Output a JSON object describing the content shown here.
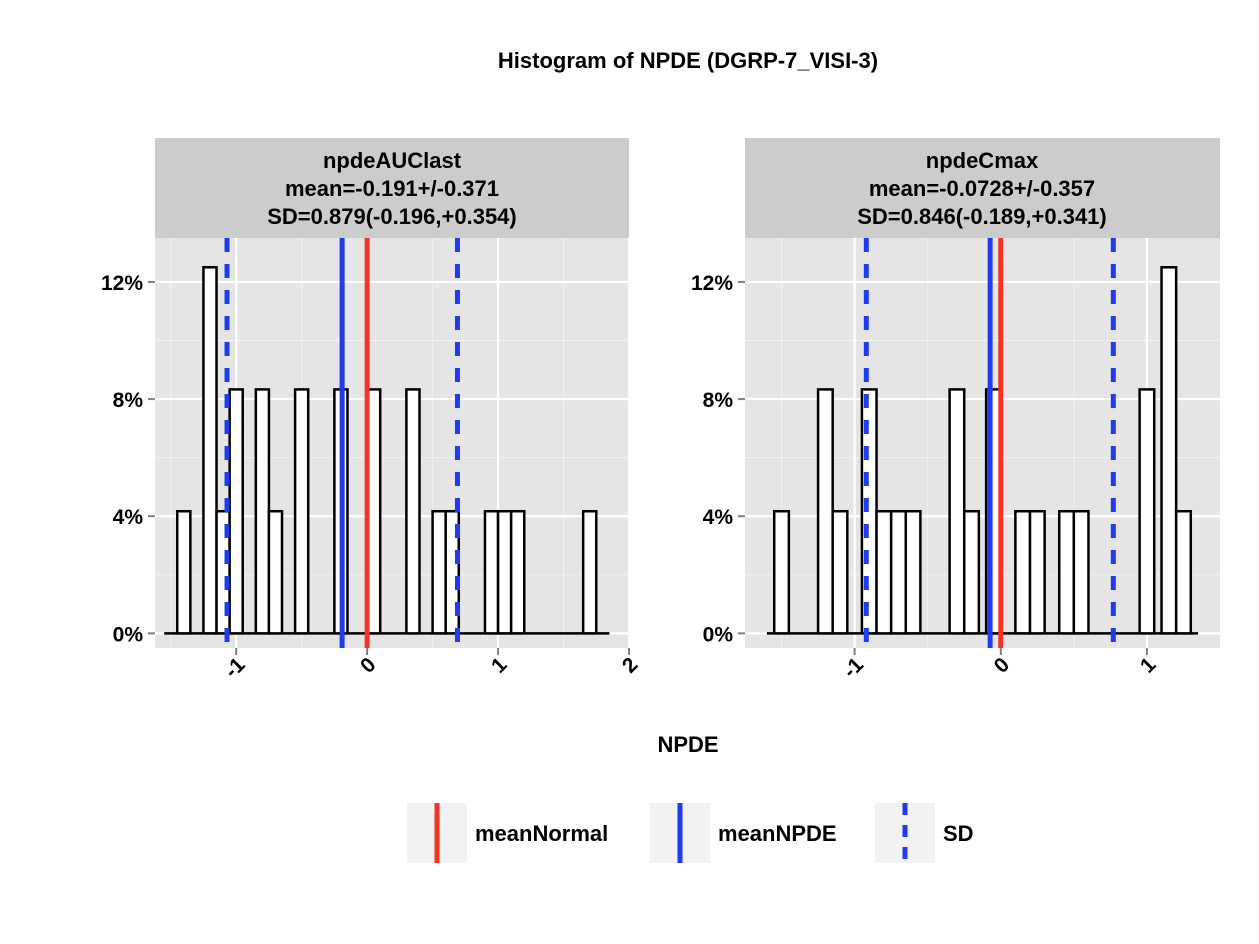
{
  "chart_data": {
    "type": "bar",
    "title": "Histogram of NPDE (DGRP-7_VISI-3)",
    "xlabel": "NPDE",
    "ylabel": "",
    "grid": true,
    "legend_placement": "bottom",
    "legend": [
      {
        "name": "meanNormal",
        "color": "#f23325",
        "linestyle": "solid"
      },
      {
        "name": "meanNPDE",
        "color": "#1f3cf0",
        "linestyle": "solid"
      },
      {
        "name": "SD",
        "color": "#1f3cf0",
        "linestyle": "dashed"
      }
    ],
    "panels": [
      {
        "strip": [
          "npdeAUClast",
          "mean=-0.191+/-0.371",
          "SD=0.879(-0.196,+0.354)"
        ],
        "xlim": [
          -1.62,
          2.0
        ],
        "ylim": [
          -0.005,
          0.135
        ],
        "xticks": [
          -1,
          0,
          1,
          2
        ],
        "xtick_labels": [
          "-1",
          "0",
          "1",
          "2"
        ],
        "yticks": [
          0,
          0.04,
          0.08,
          0.12
        ],
        "ytick_labels": [
          "0%",
          "4%",
          "8%",
          "12%"
        ],
        "baseline_range": [
          -1.55,
          1.85
        ],
        "bin_width": 0.1,
        "bins": [
          {
            "x0": -1.45,
            "value": 0.0417
          },
          {
            "x0": -1.25,
            "value": 0.125
          },
          {
            "x0": -1.15,
            "value": 0.0417
          },
          {
            "x0": -1.05,
            "value": 0.0833
          },
          {
            "x0": -0.85,
            "value": 0.0833
          },
          {
            "x0": -0.75,
            "value": 0.0417
          },
          {
            "x0": -0.55,
            "value": 0.0833
          },
          {
            "x0": -0.25,
            "value": 0.0833
          },
          {
            "x0": 0.0,
            "value": 0.0833
          },
          {
            "x0": 0.3,
            "value": 0.0833
          },
          {
            "x0": 0.5,
            "value": 0.0417
          },
          {
            "x0": 0.6,
            "value": 0.0417
          },
          {
            "x0": 0.9,
            "value": 0.0417
          },
          {
            "x0": 1.0,
            "value": 0.0417
          },
          {
            "x0": 1.1,
            "value": 0.0417
          },
          {
            "x0": 1.65,
            "value": 0.0417
          }
        ],
        "meanNormal": 0,
        "meanNPDE": -0.191,
        "sd_lines": [
          -1.07,
          0.69
        ]
      },
      {
        "strip": [
          "npdeCmax",
          "mean=-0.0728+/-0.357",
          "SD=0.846(-0.189,+0.341)"
        ],
        "xlim": [
          -1.75,
          1.5
        ],
        "ylim": [
          -0.005,
          0.135
        ],
        "xticks": [
          -1,
          0,
          1
        ],
        "xtick_labels": [
          "-1",
          "0",
          "1"
        ],
        "yticks": [
          0,
          0.04,
          0.08,
          0.12
        ],
        "ytick_labels": [
          "0%",
          "4%",
          "8%",
          "12%"
        ],
        "baseline_range": [
          -1.6,
          1.35
        ],
        "bin_width": 0.1,
        "bins": [
          {
            "x0": -1.55,
            "value": 0.0417
          },
          {
            "x0": -1.25,
            "value": 0.0833
          },
          {
            "x0": -1.15,
            "value": 0.0417
          },
          {
            "x0": -0.95,
            "value": 0.0833
          },
          {
            "x0": -0.85,
            "value": 0.0417
          },
          {
            "x0": -0.75,
            "value": 0.0417
          },
          {
            "x0": -0.65,
            "value": 0.0417
          },
          {
            "x0": -0.35,
            "value": 0.0833
          },
          {
            "x0": -0.25,
            "value": 0.0417
          },
          {
            "x0": -0.1,
            "value": 0.0833
          },
          {
            "x0": 0.1,
            "value": 0.0417
          },
          {
            "x0": 0.2,
            "value": 0.0417
          },
          {
            "x0": 0.4,
            "value": 0.0417
          },
          {
            "x0": 0.5,
            "value": 0.0417
          },
          {
            "x0": 0.95,
            "value": 0.0833
          },
          {
            "x0": 1.1,
            "value": 0.125
          },
          {
            "x0": 1.2,
            "value": 0.0417
          }
        ],
        "meanNormal": 0,
        "meanNPDE": -0.0728,
        "sd_lines": [
          -0.92,
          0.77
        ]
      }
    ]
  }
}
